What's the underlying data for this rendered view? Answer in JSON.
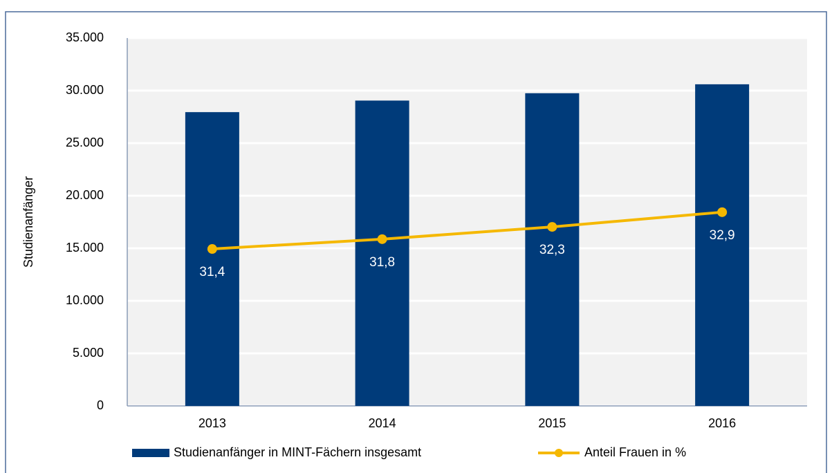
{
  "chart_data": {
    "type": "bar",
    "categories": [
      "2013",
      "2014",
      "2015",
      "2016"
    ],
    "ylabel": "Studienanfänger",
    "ylim": [
      0,
      35000
    ],
    "yticks": [
      0,
      {
        "value": 5000,
        "label": "5.000"
      },
      {
        "value": 10000,
        "label": "10.000"
      },
      {
        "value": 15000,
        "label": "15.000"
      },
      {
        "value": 20000,
        "label": "20.000"
      },
      {
        "value": 25000,
        "label": "25.000"
      },
      {
        "value": 30000,
        "label": "30.000"
      },
      {
        "value": 35000,
        "label": "35.000"
      }
    ],
    "y2lim": [
      25,
      40
    ],
    "grid": true,
    "legend": "bottom",
    "series": [
      {
        "name": "Studienanfänger in MINT-Fächern insgesamt",
        "type": "bar",
        "color": "#003b7a",
        "values": [
          27950,
          29050,
          29750,
          30600
        ]
      },
      {
        "name": "Anteil Frauen in %",
        "type": "line",
        "axis": "y2",
        "color": "#f5b800",
        "values": [
          31.4,
          31.8,
          32.3,
          32.9
        ],
        "value_labels": [
          "31,4",
          "31,8",
          "32,3",
          "32,9"
        ]
      }
    ]
  }
}
